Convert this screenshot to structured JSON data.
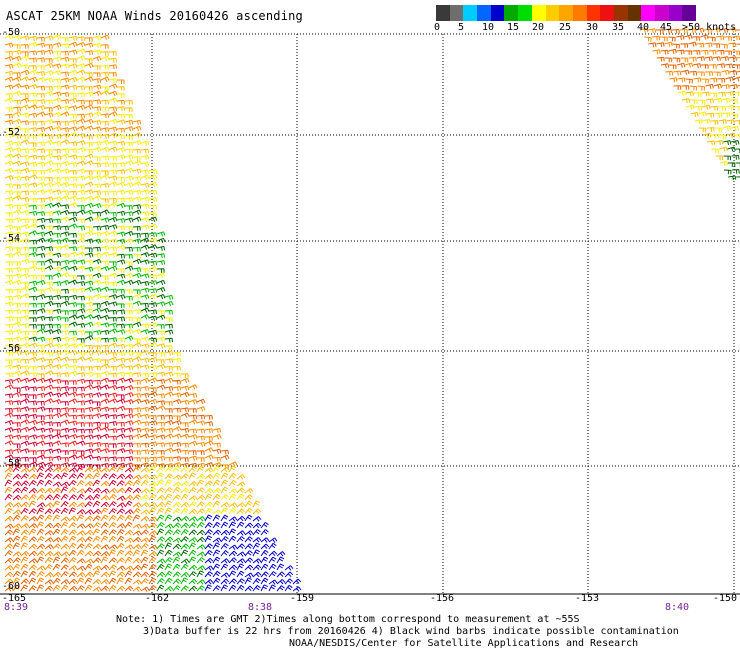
{
  "title": "ASCAT 25KM NOAA Winds 20160426 ascending",
  "colorbar": {
    "colors": [
      "#3a3a3a",
      "#6e6e6e",
      "#00ccff",
      "#0066ff",
      "#0000cc",
      "#00aa00",
      "#00dd00",
      "#ffff00",
      "#ffcc00",
      "#ffa500",
      "#ff7a00",
      "#ff3300",
      "#ee1111",
      "#993300",
      "#663300",
      "#ff00ff",
      "#cc00cc",
      "#9900cc",
      "#660099"
    ],
    "tick_labels": [
      "0",
      "5",
      "10",
      "15",
      "20",
      "25",
      "30",
      "35",
      "40",
      "45",
      ">50 knots"
    ]
  },
  "latitude_labels": [
    "-50",
    "-52",
    "-54",
    "-56",
    "-58",
    "-60"
  ],
  "longitude_labels": [
    "-165",
    "-162",
    "-159",
    "-156",
    "-153",
    "-150"
  ],
  "time_labels": [
    "8:39",
    "8:38",
    "8:40"
  ],
  "wind_colors": {
    "blue": "#0000cc",
    "green": "#00bb00",
    "darkgreen": "#006600",
    "yellow": "#ffee00",
    "gold": "#ffc000",
    "orange": "#ff8c00",
    "darkorange": "#e06000",
    "red": "#ee2222",
    "crimson": "#cc0033",
    "black": "#000000"
  },
  "notes": {
    "line1": "Note: 1) Times are GMT 2)Times along bottom correspond to measurement at ~55S",
    "line2": "3)Data buffer is 22 hrs from 20160426 4) Black wind barbs indicate possible contamination",
    "line3": "NOAA/NESDIS/Center for Satellite Applications and Research"
  }
}
